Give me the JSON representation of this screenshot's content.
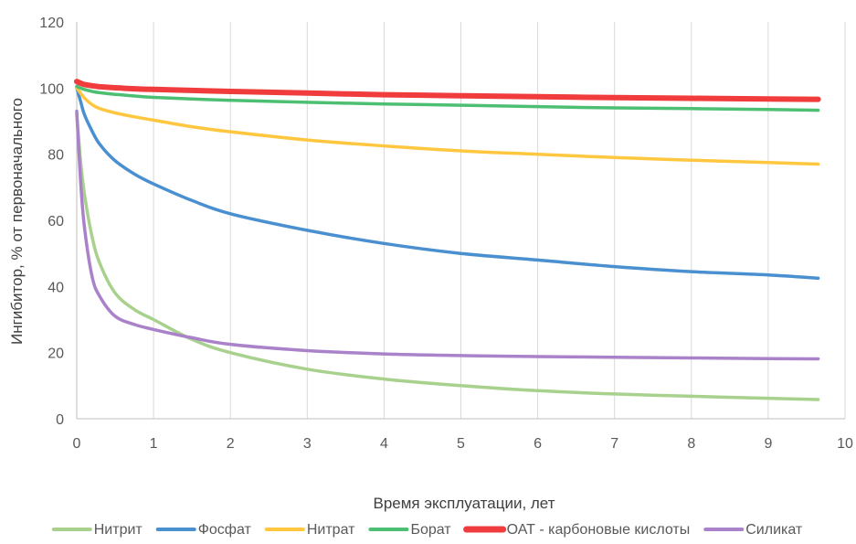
{
  "chart_data": {
    "type": "line",
    "xlabel": "Время эксплуатации, лет",
    "ylabel": "Ингибитор, % от первоначального",
    "xlim": [
      0,
      10
    ],
    "ylim": [
      0,
      120
    ],
    "xticks": [
      0,
      1,
      2,
      3,
      4,
      5,
      6,
      7,
      8,
      9,
      10
    ],
    "yticks": [
      0,
      20,
      40,
      60,
      80,
      100,
      120
    ],
    "grid": "vertical",
    "legend_position": "bottom",
    "x": [
      0,
      0.05,
      0.1,
      0.2,
      0.3,
      0.5,
      0.75,
      1,
      1.5,
      2,
      3,
      4,
      5,
      6,
      7,
      8,
      9,
      9.65
    ],
    "series": [
      {
        "name": "Нитрит",
        "color": "#a9d18e",
        "values": [
          92,
          78,
          68,
          55,
          47,
          38,
          33,
          30,
          24,
          20,
          15,
          12,
          10,
          8.5,
          7.5,
          6.8,
          6.2,
          5.8
        ]
      },
      {
        "name": "Фосфат",
        "color": "#4a90d0",
        "values": [
          100,
          96,
          92,
          87,
          83,
          78,
          74,
          71,
          66,
          62,
          57,
          53,
          50,
          48,
          46,
          44.5,
          43.5,
          42.5
        ]
      },
      {
        "name": "Нитрат",
        "color": "#ffc740",
        "values": [
          100,
          98.5,
          97,
          95,
          93.8,
          92.5,
          91.3,
          90.3,
          88.3,
          86.8,
          84.3,
          82.5,
          81,
          80,
          79,
          78.2,
          77.5,
          77
        ]
      },
      {
        "name": "Борат",
        "color": "#4cbf72",
        "values": [
          100.5,
          100,
          99.6,
          99,
          98.6,
          98.1,
          97.6,
          97.2,
          96.7,
          96.3,
          95.7,
          95.2,
          94.8,
          94.4,
          94,
          93.8,
          93.5,
          93.3
        ]
      },
      {
        "name": "ОАТ - карбоновые кислоты",
        "color": "#f03c3c",
        "values": [
          102,
          101.5,
          101.1,
          100.7,
          100.4,
          100.1,
          99.8,
          99.6,
          99.3,
          99,
          98.5,
          98,
          97.7,
          97.4,
          97.1,
          96.9,
          96.7,
          96.6
        ]
      },
      {
        "name": "Силикат",
        "color": "#a982c9",
        "values": [
          93,
          72,
          58,
          43,
          37,
          31,
          28.5,
          27,
          24.5,
          22.5,
          20.6,
          19.6,
          19.1,
          18.8,
          18.6,
          18.4,
          18.2,
          18.1
        ]
      }
    ]
  }
}
